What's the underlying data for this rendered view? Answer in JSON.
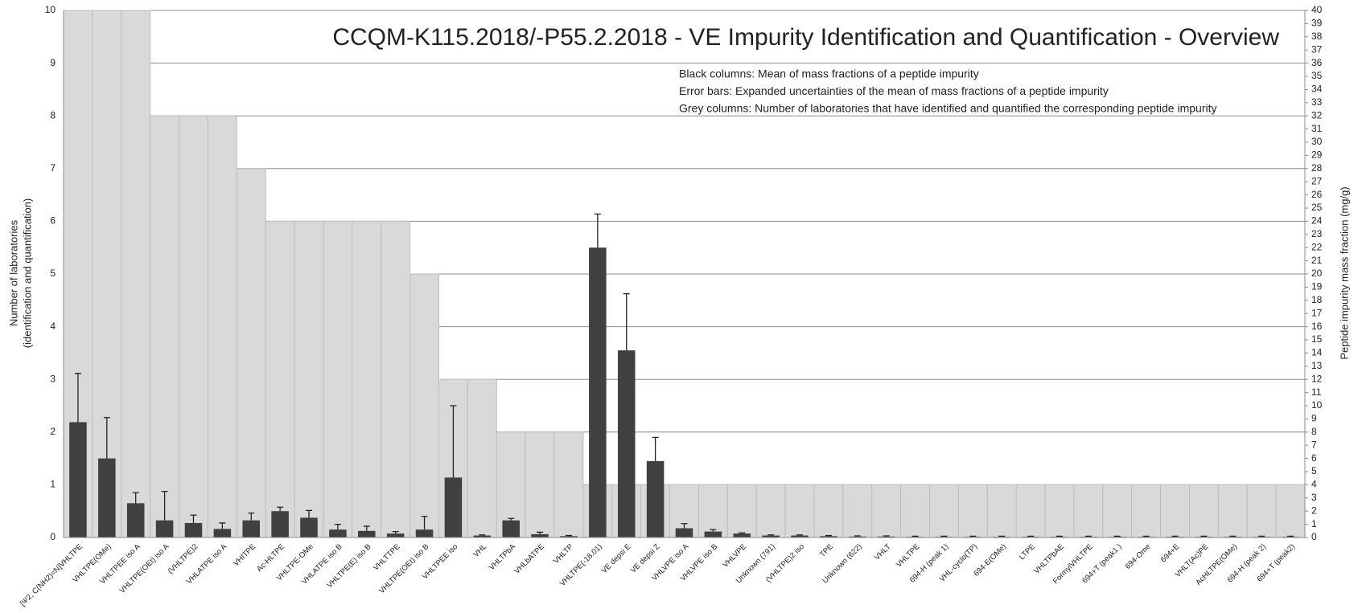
{
  "chart_data": {
    "type": "bar",
    "title": "CCQM-K115.2018/-P55.2.2018 - VE Impurity Identification and Quantification - Overview",
    "annotations": [
      "Black columns: Mean of mass fractions of a peptide impurity",
      "Error bars: Expanded uncertainties of the mean of mass fractions of a peptide impurity",
      "Grey columns: Number of laboratories that have identified and quantified the corresponding peptide impurity"
    ],
    "ylabel": [
      "Number of laboratories",
      "(identification and quantification)"
    ],
    "y2label": "Peptide impurity mass fraction (mg/g)",
    "categories": [
      "[Ψ2, C(NH2)=N]VHLTPE",
      "VHLTPE(OMe)",
      "VHLTPEE iso A",
      "VHLTPE(OEt) iso A",
      "(VHLTPE)2",
      "VHLATPE iso A",
      "VHITPE",
      "Ac-HLTPE",
      "VHLTPE-OMe",
      "VHLATPE iso B",
      "VHLTPE(E) iso B",
      "VHLTTPE",
      "VHLTPE(OEt) iso B",
      "VHLTPEE iso",
      "VHL",
      "VHLTPbA",
      "VHLbATPE",
      "VHLTP",
      "VHLTPE(-18.01)",
      "VE depsi E",
      "VE depsi Z",
      "VHLVPE iso A",
      "VHLVPE iso B",
      "VHLVPE",
      "Unknown (791)",
      "(VHLTPE)2 iso",
      "TPE",
      "Unknown (622)",
      "VHLT",
      "VHLTPE",
      "694-H (peak 1)",
      "VHL-cyclo(TP)",
      "694-E(OMe)",
      "LTPE",
      "VHLTPbAE",
      "FormylVHLTPE",
      "694+T (peak1 )",
      "694-Ome",
      "694+E",
      "VHLT(Ac)PE",
      "AcHLTPE(OMe)",
      "694-H (peak 2)",
      "694+T (peak2)"
    ],
    "series": [
      {
        "name": "Grey columns",
        "color": "#d9d9d9",
        "axis": "y",
        "values": [
          10,
          10,
          10,
          8,
          8,
          8,
          7,
          6,
          6,
          6,
          6,
          6,
          5,
          3,
          3,
          2,
          2,
          2,
          1,
          1,
          1,
          1,
          1,
          1,
          1,
          1,
          1,
          1,
          1,
          1,
          1,
          1,
          1,
          1,
          1,
          1,
          1,
          1,
          1,
          1,
          1,
          1,
          1
        ]
      },
      {
        "name": "Black columns",
        "color": "#404040",
        "axis": "y2",
        "values": [
          8.75,
          6.0,
          2.6,
          1.3,
          1.1,
          0.65,
          1.3,
          2.0,
          1.5,
          0.6,
          0.5,
          0.3,
          0.6,
          4.55,
          0.15,
          1.3,
          0.25,
          0.1,
          22.0,
          14.2,
          5.8,
          0.7,
          0.45,
          0.3,
          0.15,
          0.15,
          0.1,
          0.07,
          0.07,
          0.05,
          0.05,
          0.05,
          0.05,
          0.05,
          0.05,
          0.05,
          0.05,
          0.05,
          0.05,
          0.05,
          0.05,
          0.05,
          0.05
        ],
        "errors": [
          3.7,
          3.1,
          0.8,
          2.2,
          0.6,
          0.45,
          0.55,
          0.3,
          0.55,
          0.4,
          0.35,
          0.15,
          1.0,
          5.45,
          0.05,
          0.15,
          0.15,
          0.05,
          2.55,
          4.3,
          1.8,
          0.35,
          0.15,
          0.05,
          0.05,
          0.05,
          0.05,
          0.05,
          0.05,
          0.05,
          0.05,
          0.05,
          0.05,
          0.05,
          0.05,
          0.05,
          0.05,
          0.05,
          0.05,
          0.05,
          0.05,
          0.05,
          0.05
        ]
      }
    ],
    "ylim": [
      0,
      10
    ],
    "yticks": [
      0,
      1,
      2,
      3,
      4,
      5,
      6,
      7,
      8,
      9,
      10
    ],
    "y2lim": [
      0,
      40
    ],
    "y2ticks": [
      0,
      1,
      2,
      3,
      4,
      5,
      6,
      7,
      8,
      9,
      10,
      11,
      12,
      13,
      14,
      15,
      16,
      17,
      18,
      19,
      20,
      21,
      22,
      23,
      24,
      25,
      26,
      27,
      28,
      29,
      30,
      31,
      32,
      33,
      34,
      35,
      36,
      37,
      38,
      39,
      40
    ],
    "grid": true
  }
}
